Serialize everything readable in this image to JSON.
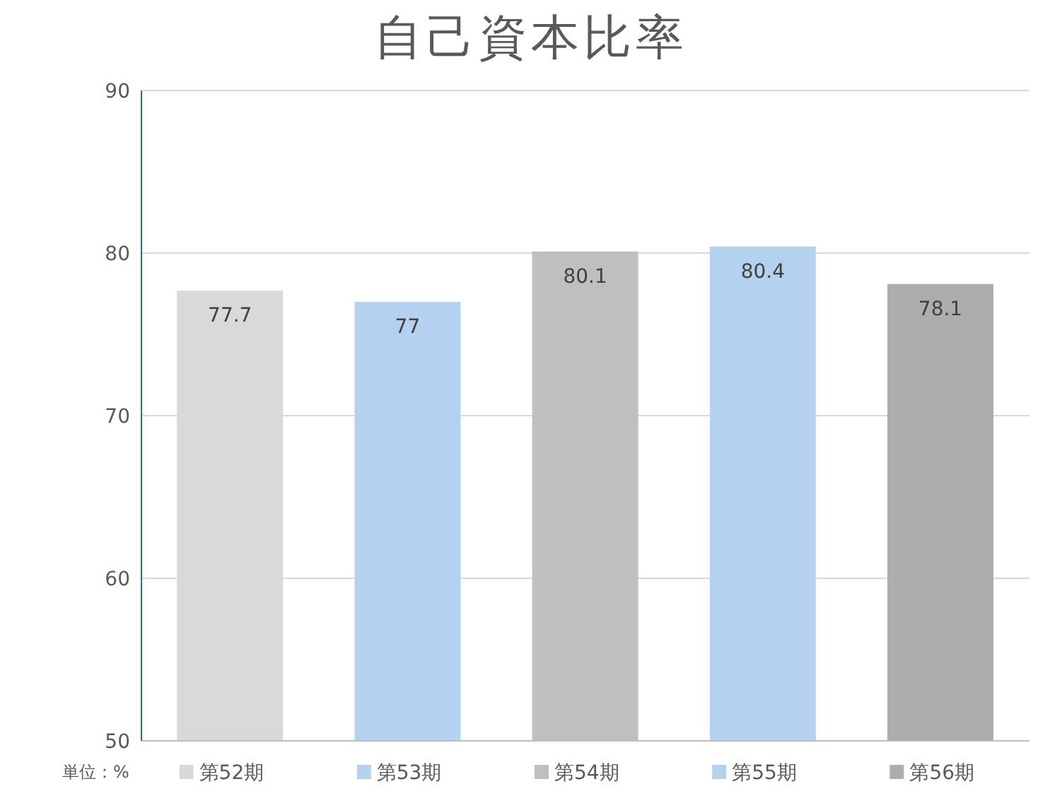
{
  "chart_data": {
    "type": "bar",
    "title": "自己資本比率",
    "categories": [
      "第52期",
      "第53期",
      "第54期",
      "第55期",
      "第56期"
    ],
    "values": [
      77.7,
      77,
      80.1,
      80.4,
      78.1
    ],
    "colors": [
      "#d9d9d9",
      "#b4d2ef",
      "#bfbfbf",
      "#b4d2ef",
      "#adadad"
    ],
    "ylim": [
      50,
      90
    ],
    "yticks": [
      50,
      60,
      70,
      80,
      90
    ],
    "grid": "y",
    "data_labels": true,
    "annotations": [
      "単位：%"
    ]
  }
}
